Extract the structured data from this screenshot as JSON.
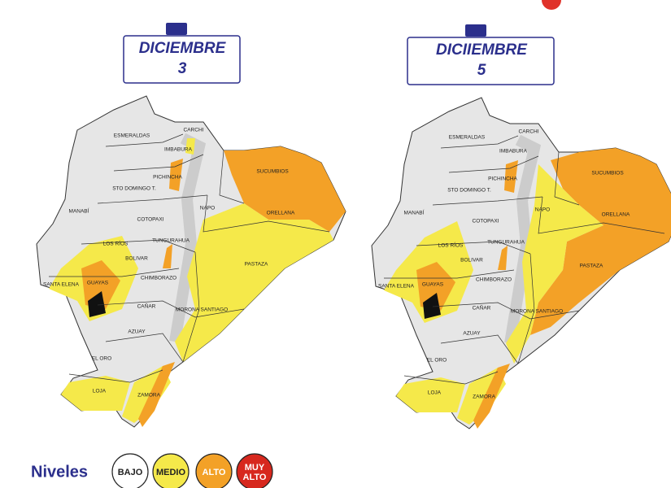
{
  "maps": [
    {
      "header": {
        "month": "DICIEMBRE",
        "day": "3"
      },
      "provinces": [
        "ESMERALDAS",
        "CARCHI",
        "IMBABURA",
        "PICHINCHA",
        "STO DOMINGO T.",
        "SUCUMBIOS",
        "NAPO",
        "ORELLANA",
        "MANABÍ",
        "COTOPAXI",
        "LOS RÍOS",
        "TUNGURAHUA",
        "BOLIVAR",
        "PASTAZA",
        "SANTA ELENA",
        "GUAYAS",
        "CHIMBORAZO",
        "CAÑAR",
        "MORONA SANTIAGO",
        "AZUAY",
        "EL ORO",
        "LOJA",
        "ZAMORA"
      ]
    },
    {
      "header": {
        "month": "DICIIEMBRE",
        "day": "5"
      },
      "provinces": [
        "ESMERALDAS",
        "CARCHI",
        "IMBABURA",
        "PICHINCHA",
        "STO DOMINGO T.",
        "SUCUMBIOS",
        "NAPO",
        "ORELLANA",
        "MANABÍ",
        "COTOPAXI",
        "LOS RÍOS",
        "TUNGURAHUA",
        "BOLIVAR",
        "PASTAZA",
        "SANTA ELENA",
        "GUAYAS",
        "CHIMBORAZO",
        "CAÑAR",
        "MORONA SANTIAGO",
        "AZUAY",
        "EL ORO",
        "LOJA",
        "ZAMORA"
      ]
    }
  ],
  "legend": {
    "title": "Niveles",
    "levels": [
      {
        "label": "BAJO",
        "color": "#ffffff"
      },
      {
        "label": "MEDIO",
        "color": "#f5e94a"
      },
      {
        "label": "ALTO",
        "color": "#f3a127"
      },
      {
        "label": "MUY ALTO",
        "color": "#d7281e"
      }
    ]
  }
}
